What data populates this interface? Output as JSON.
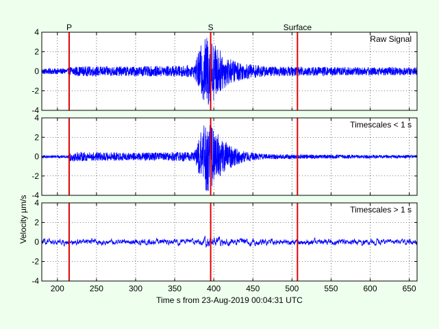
{
  "colors": {
    "background": "#eeffee",
    "signal": "#0000ff",
    "phase_marker": "#e00000"
  },
  "chart_data": {
    "type": "line",
    "xlabel": "Time s from 23-Aug-2019 00:04:31 UTC",
    "ylabel": "Velocity µm/s",
    "xlim": [
      180,
      660
    ],
    "xticks": [
      200,
      250,
      300,
      350,
      400,
      450,
      500,
      550,
      600,
      650
    ],
    "grid": true,
    "phase_markers": [
      {
        "label": "P",
        "x": 215
      },
      {
        "label": "S",
        "x": 396
      },
      {
        "label": "Surface",
        "x": 507
      }
    ],
    "panels": [
      {
        "label": "Raw Signal",
        "ylim": [
          -4,
          4
        ],
        "yticks": [
          4,
          2,
          0,
          -2,
          -4
        ],
        "envelope": [
          {
            "x": 180,
            "amp": 0.3
          },
          {
            "x": 214,
            "amp": 0.3
          },
          {
            "x": 216,
            "amp": 0.5
          },
          {
            "x": 300,
            "amp": 0.5
          },
          {
            "x": 375,
            "amp": 0.6
          },
          {
            "x": 385,
            "amp": 3.0
          },
          {
            "x": 392,
            "amp": 3.8
          },
          {
            "x": 400,
            "amp": 3.0
          },
          {
            "x": 410,
            "amp": 2.0
          },
          {
            "x": 420,
            "amp": 1.3
          },
          {
            "x": 440,
            "amp": 0.8
          },
          {
            "x": 470,
            "amp": 0.5
          },
          {
            "x": 660,
            "amp": 0.4
          }
        ]
      },
      {
        "label": "Timescales < 1 s",
        "ylim": [
          -4,
          4
        ],
        "yticks": [
          4,
          2,
          0,
          -2,
          -4
        ],
        "envelope": [
          {
            "x": 180,
            "amp": 0.15
          },
          {
            "x": 214,
            "amp": 0.15
          },
          {
            "x": 216,
            "amp": 0.5
          },
          {
            "x": 300,
            "amp": 0.4
          },
          {
            "x": 375,
            "amp": 0.5
          },
          {
            "x": 385,
            "amp": 3.0
          },
          {
            "x": 392,
            "amp": 3.8
          },
          {
            "x": 400,
            "amp": 2.8
          },
          {
            "x": 410,
            "amp": 2.0
          },
          {
            "x": 420,
            "amp": 1.2
          },
          {
            "x": 440,
            "amp": 0.5
          },
          {
            "x": 470,
            "amp": 0.25
          },
          {
            "x": 660,
            "amp": 0.15
          }
        ]
      },
      {
        "label": "Timescales > 1 s",
        "ylim": [
          -4,
          4
        ],
        "yticks": [
          4,
          2,
          0,
          -2,
          -4
        ],
        "envelope": [
          {
            "x": 180,
            "amp": 0.3
          },
          {
            "x": 380,
            "amp": 0.3
          },
          {
            "x": 395,
            "amp": 0.55
          },
          {
            "x": 420,
            "amp": 0.35
          },
          {
            "x": 660,
            "amp": 0.3
          }
        ]
      }
    ]
  }
}
